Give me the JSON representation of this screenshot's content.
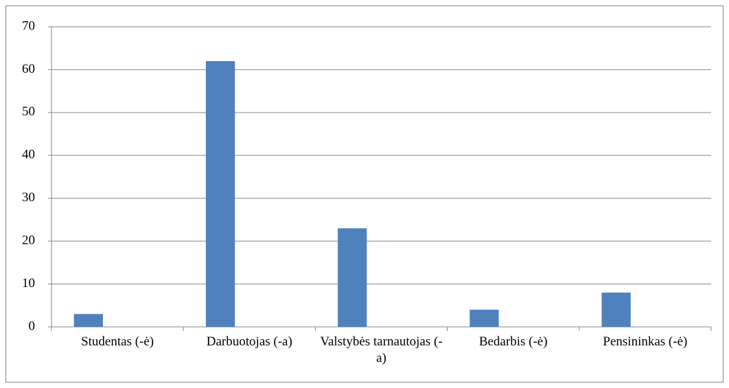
{
  "chart_data": {
    "type": "bar",
    "categories": [
      "Studentas (-ė)",
      "Darbuotojas (-a)",
      "Valstybės tarnautojas (-a)",
      "Bedarbis (-ė)",
      "Pensininkas (-ė)"
    ],
    "values": [
      3,
      62,
      23,
      4,
      8
    ],
    "color": "#4f81bd",
    "ylim": [
      0,
      70
    ],
    "yticks": [
      0,
      10,
      20,
      30,
      40,
      50,
      60,
      70
    ],
    "grid": true
  }
}
